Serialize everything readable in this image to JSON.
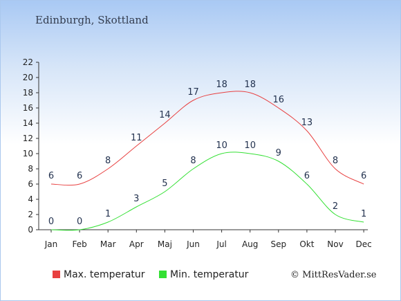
{
  "chart_title": "Edinburgh, Skottland",
  "credit": "© MittResVader.se",
  "chart_data": {
    "type": "line",
    "title": "Edinburgh, Skottland",
    "xlabel": "",
    "ylabel": "",
    "categories": [
      "Jan",
      "Feb",
      "Mar",
      "Apr",
      "Maj",
      "Jun",
      "Jul",
      "Aug",
      "Sep",
      "Okt",
      "Nov",
      "Dec"
    ],
    "ylim": [
      0,
      22
    ],
    "yticks": [
      0,
      2,
      4,
      6,
      8,
      10,
      12,
      14,
      16,
      18,
      20,
      22
    ],
    "grid": false,
    "legend": "bottom",
    "series": [
      {
        "name": "Max. temperatur",
        "color": "#e84040",
        "values": [
          6,
          6,
          8,
          11,
          14,
          17,
          18,
          18,
          16,
          13,
          8,
          6
        ]
      },
      {
        "name": "Min. temperatur",
        "color": "#33e033",
        "values": [
          0,
          0,
          1,
          3,
          5,
          8,
          10,
          10,
          9,
          6,
          2,
          1
        ]
      }
    ]
  }
}
